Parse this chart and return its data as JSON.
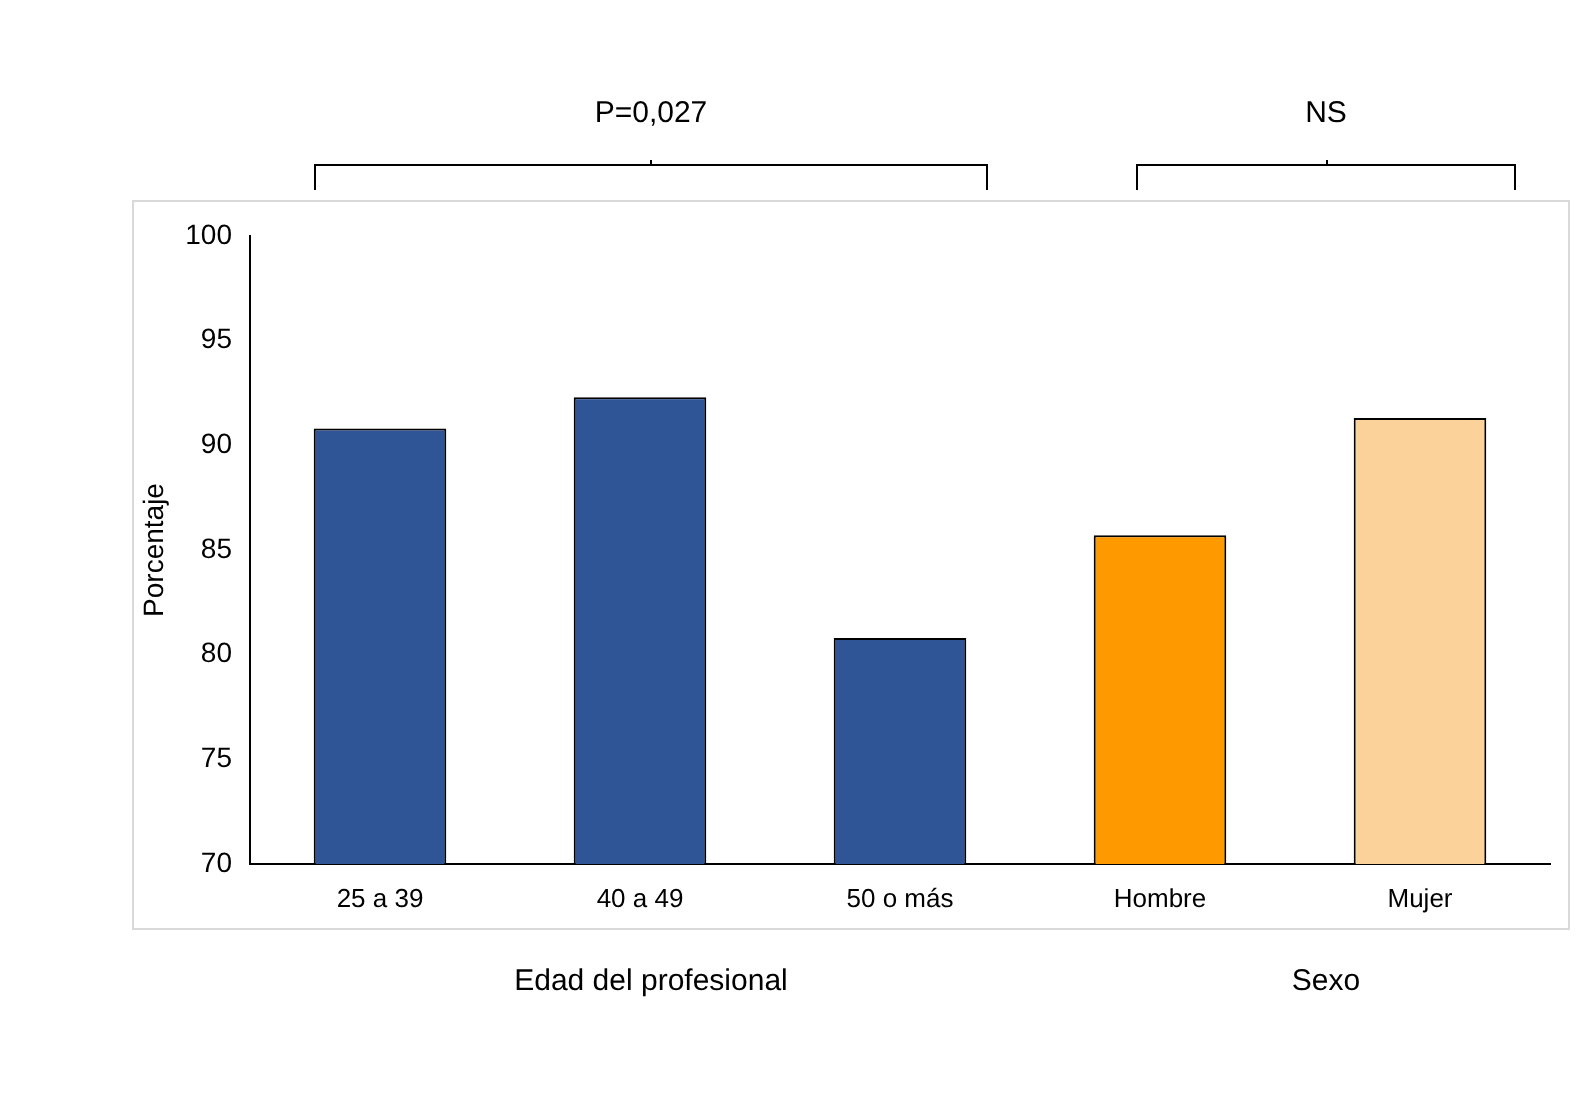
{
  "chart_data": {
    "type": "bar",
    "ylabel": "Porcentaje",
    "categories": [
      "25 a 39",
      "40 a 49",
      "50 o más",
      "Hombre",
      "Mujer"
    ],
    "values": [
      90.8,
      92.3,
      80.8,
      85.7,
      91.3
    ],
    "colors": [
      "#2f5597",
      "#2f5597",
      "#2f5597",
      "#ff9900",
      "#fbd29a"
    ],
    "ylim": [
      70,
      100
    ],
    "yticks": [
      70,
      75,
      80,
      85,
      90,
      95,
      100
    ],
    "grid": false,
    "legend": false,
    "annotations": [
      "P=0,027",
      "NS",
      "Edad del profesional",
      "Sexo"
    ]
  }
}
